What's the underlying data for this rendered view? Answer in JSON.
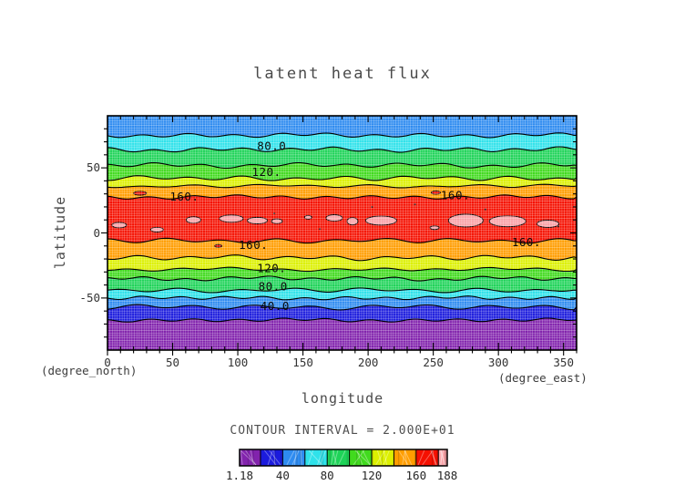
{
  "chart_data": {
    "type": "filled_contour",
    "title": "latent heat flux",
    "xlabel": "longitude",
    "xlabel_unit": "(degree_east)",
    "ylabel": "latitude",
    "ylabel_unit": "(degree_north)",
    "x_range": [
      0,
      360
    ],
    "y_range": [
      -90,
      90
    ],
    "x_major_ticks": [
      0,
      50,
      100,
      150,
      200,
      250,
      300,
      350
    ],
    "x_tick_labels": [
      "0",
      "50",
      "100",
      "150",
      "200",
      "250",
      "300",
      "350"
    ],
    "x_minor_step": 10,
    "y_major_ticks": [
      50,
      0,
      -50
    ],
    "y_tick_labels": [
      "50",
      "0",
      "-50"
    ],
    "y_minor_step": 10,
    "grid": true,
    "legend_text": "CONTOUR INTERVAL = 2.000E+01",
    "levels": [
      1.18,
      20,
      40,
      60,
      80,
      100,
      120,
      140,
      160,
      180,
      188
    ],
    "level_colors": [
      "#8223ad",
      "#1b1bdd",
      "#2e8bf0",
      "#2fe2ea",
      "#1ed358",
      "#41da1e",
      "#dcf000",
      "#ff9d00",
      "#f51000",
      "#f9a0a5"
    ],
    "colorbar_tick_labels": [
      "1.18",
      "40",
      "80",
      "120",
      "160",
      "188"
    ],
    "colorbar_tick_values": [
      1.18,
      40,
      80,
      120,
      160,
      188
    ],
    "band_colors_north_to_south": [
      "#2e8bf0",
      "#2fe2ea",
      "#1ed358",
      "#41da1e",
      "#dcf000",
      "#ff9d00",
      "#f51000",
      "#ff9d00",
      "#dcf000",
      "#41da1e",
      "#1ed358",
      "#2fe2ea",
      "#2e8bf0",
      "#1b1bdd",
      "#8223ad"
    ],
    "zonal_mean_contours": [
      {
        "value": 60,
        "lat": 75
      },
      {
        "value": 80,
        "lat": 64
      },
      {
        "value": 100,
        "lat": 52
      },
      {
        "value": 120,
        "lat": 42
      },
      {
        "value": 140,
        "lat": 36
      },
      {
        "value": 160,
        "lat": 27.5
      },
      {
        "value": 160,
        "lat": -6
      },
      {
        "value": 140,
        "lat": -19
      },
      {
        "value": 120,
        "lat": -28
      },
      {
        "value": 100,
        "lat": -35
      },
      {
        "value": 80,
        "lat": -44
      },
      {
        "value": 60,
        "lat": -50
      },
      {
        "value": 40,
        "lat": -57
      },
      {
        "value": 20,
        "lat": -67
      }
    ],
    "contour_labels": [
      {
        "text": "80.0",
        "lon": 126,
        "lat": 67
      },
      {
        "text": "120.",
        "lon": 122,
        "lat": 47
      },
      {
        "text": "160.",
        "lon": 59,
        "lat": 28
      },
      {
        "text": "160.",
        "lon": 267,
        "lat": 29
      },
      {
        "text": "160.",
        "lon": 112,
        "lat": -9
      },
      {
        "text": "160.",
        "lon": 321.5,
        "lat": -7
      },
      {
        "text": "120.",
        "lon": 126,
        "lat": -27
      },
      {
        "text": "80.0",
        "lon": 127,
        "lat": -41
      },
      {
        "text": "40.0",
        "lon": 128.5,
        "lat": -56
      }
    ],
    "pink_max_regions": [
      {
        "lon": 9,
        "lat": 6,
        "rlon": 5.6,
        "rlat": 2.1
      },
      {
        "lon": 38,
        "lat": 2.5,
        "rlon": 4.9,
        "rlat": 1.8
      },
      {
        "lon": 66,
        "lat": 10,
        "rlon": 5.6,
        "rlat": 2.5
      },
      {
        "lon": 95,
        "lat": 11,
        "rlon": 9.1,
        "rlat": 2.8
      },
      {
        "lon": 115,
        "lat": 9.5,
        "rlon": 7.7,
        "rlat": 2.5
      },
      {
        "lon": 130,
        "lat": 9,
        "rlon": 4.2,
        "rlat": 1.8
      },
      {
        "lon": 154,
        "lat": 12,
        "rlon": 2.8,
        "rlat": 1.4
      },
      {
        "lon": 174,
        "lat": 11.5,
        "rlon": 6.3,
        "rlat": 2.5
      },
      {
        "lon": 188,
        "lat": 9,
        "rlon": 4.2,
        "rlat": 2.8
      },
      {
        "lon": 210,
        "lat": 9.5,
        "rlon": 11.9,
        "rlat": 3.5
      },
      {
        "lon": 251,
        "lat": 4,
        "rlon": 3.5,
        "rlat": 1.4
      },
      {
        "lon": 275,
        "lat": 9.5,
        "rlon": 13.3,
        "rlat": 4.9
      },
      {
        "lon": 307,
        "lat": 9,
        "rlon": 14,
        "rlat": 4.2
      },
      {
        "lon": 338,
        "lat": 7,
        "rlon": 8.4,
        "rlat": 2.8
      }
    ],
    "small_red_spots": [
      {
        "lon": 25,
        "lat": 30.5,
        "rlon": 4.9,
        "rlat": 1.5
      },
      {
        "lon": 85,
        "lat": -10,
        "rlon": 2.8,
        "rlat": 1.1
      },
      {
        "lon": 252,
        "lat": 31,
        "rlon": 3.5,
        "rlat": 1.3
      }
    ],
    "dot_artifacts": [
      {
        "lon": 128,
        "lat": 15
      },
      {
        "lon": 163,
        "lat": 3
      },
      {
        "lon": 203,
        "lat": 20
      },
      {
        "lon": 236,
        "lat": 22
      },
      {
        "lon": 290,
        "lat": 18
      },
      {
        "lon": 310,
        "lat": 3
      },
      {
        "lon": 346,
        "lat": 5
      }
    ]
  }
}
